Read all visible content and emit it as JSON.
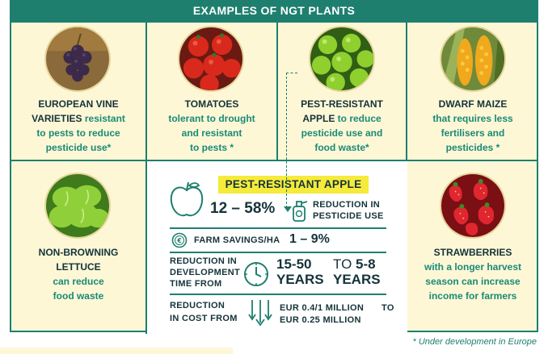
{
  "header": {
    "title": "EXAMPLES OF NGT PLANTS"
  },
  "top_row": [
    {
      "lines": [
        [
          {
            "t": "EUROPEAN VINE",
            "b": true
          }
        ],
        [
          {
            "t": "VARIETIES",
            "b": true
          },
          {
            "t": " resistant",
            "b": false
          }
        ],
        [
          {
            "t": "to pests to reduce",
            "b": false
          }
        ],
        [
          {
            "t": "pesticide use*",
            "b": false
          }
        ]
      ]
    },
    {
      "lines": [
        [
          {
            "t": "TOMATOES",
            "b": true
          }
        ],
        [
          {
            "t": "tolerant to drought",
            "b": false
          }
        ],
        [
          {
            "t": "and resistant",
            "b": false
          }
        ],
        [
          {
            "t": "to pests *",
            "b": false
          }
        ]
      ]
    },
    {
      "lines": [
        [
          {
            "t": "PEST-RESISTANT",
            "b": true
          }
        ],
        [
          {
            "t": "APPLE",
            "b": true
          },
          {
            "t": " to reduce",
            "b": false
          }
        ],
        [
          {
            "t": "pesticide use and",
            "b": false
          }
        ],
        [
          {
            "t": "food waste*",
            "b": false
          }
        ]
      ]
    },
    {
      "lines": [
        [
          {
            "t": "DWARF MAIZE",
            "b": true
          }
        ],
        [
          {
            "t": "that requires less",
            "b": false
          }
        ],
        [
          {
            "t": "fertilisers and",
            "b": false
          }
        ],
        [
          {
            "t": "pesticides *",
            "b": false
          }
        ]
      ]
    }
  ],
  "left_cell": {
    "lines": [
      [
        {
          "t": "NON-BROWNING",
          "b": true
        }
      ],
      [
        {
          "t": "LETTUCE",
          "b": true
        }
      ],
      [
        {
          "t": "can reduce",
          "b": false
        }
      ],
      [
        {
          "t": "food waste",
          "b": false
        }
      ]
    ]
  },
  "right_cell": {
    "lines": [
      [
        {
          "t": "STRAWBERRIES",
          "b": true
        }
      ],
      [
        {
          "t": "with a longer harvest",
          "b": false
        }
      ],
      [
        {
          "t": "season can increase",
          "b": false
        }
      ],
      [
        {
          "t": "income for farmers",
          "b": false
        }
      ]
    ]
  },
  "apple_panel": {
    "title": "PEST-RESISTANT APPLE",
    "pesticide_value": "12 – 58%",
    "pesticide_label_1": "REDUCTION IN",
    "pesticide_label_2": "PESTICIDE USE",
    "farm_label": "FARM SAVINGS/HA",
    "farm_value": "1 – 9%",
    "dev_label_1": "REDUCTION IN",
    "dev_label_2": "DEVELOPMENT",
    "dev_label_3": "TIME FROM",
    "dev_from_1": "15-50",
    "dev_from_2": "YEARS",
    "dev_to_word": "TO",
    "dev_to_1": "5-8",
    "dev_to_2": "YEARS",
    "cost_label_1": "REDUCTION",
    "cost_label_2": "IN COST FROM",
    "cost_from": "EUR 0.4/1 MILLION",
    "cost_to_word": "TO",
    "cost_to": "EUR 0.25 MILLION"
  },
  "footnote": "* Under development in Europe",
  "icons": [
    "grapes-photo",
    "tomatoes-photo",
    "apples-photo",
    "maize-photo",
    "lettuce-photo",
    "strawberries-photo",
    "apple-outline-icon",
    "spray-bottle-icon",
    "euro-coin-icon",
    "clock-icon",
    "down-arrows-icon"
  ]
}
